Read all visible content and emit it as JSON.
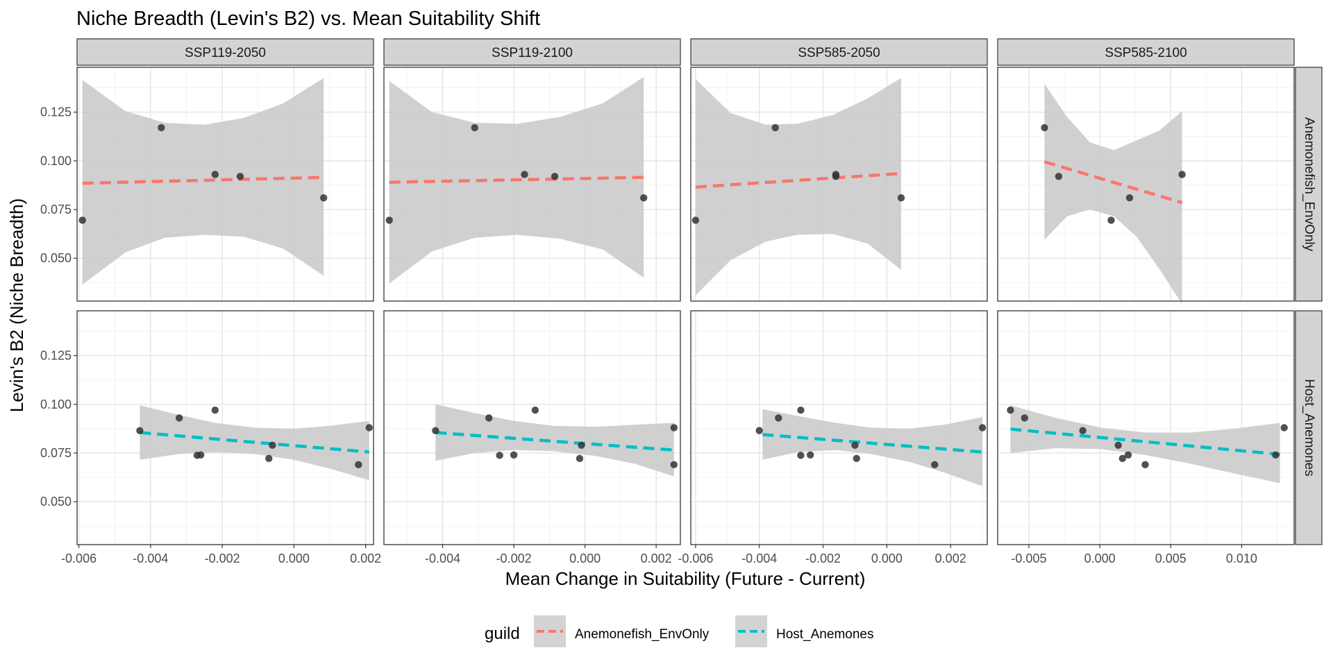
{
  "chart_data": {
    "type": "scatter",
    "title": "Niche Breadth (Levin's B2) vs. Mean Suitability Shift",
    "xlabel": "Mean Change in Suitability (Future - Current)",
    "ylabel": "Levin's B2 (Niche Breadth)",
    "legend": {
      "title": "guild",
      "position": "bottom",
      "entries": [
        {
          "name": "Anemonefish_EnvOnly",
          "color": "#F8766D"
        },
        {
          "name": "Host_Anemones",
          "color": "#00BFC4"
        }
      ]
    },
    "colors": {
      "ribbon": "#c8c8c8",
      "strip": "#d3d3d3",
      "point": "#333333",
      "grid_major": "#e6e6e6",
      "grid_minor": "#f2f2f2"
    },
    "y_range": [
      0.028,
      0.148
    ],
    "y_ticks": [
      0.05,
      0.075,
      0.1,
      0.125
    ],
    "y_tick_labels": [
      "0.050",
      "0.075",
      "0.100",
      "0.125"
    ],
    "columns": [
      {
        "label": "SSP119-2050",
        "x_range": [
          -0.00605,
          0.00222
        ],
        "x_ticks": [
          -0.006,
          -0.004,
          -0.002,
          0.0,
          0.002
        ],
        "x_tick_labels": [
          "-0.006",
          "-0.004",
          "-0.002",
          "0.000",
          "0.002"
        ]
      },
      {
        "label": "SSP119-2100",
        "x_range": [
          -0.00565,
          0.00268
        ],
        "x_ticks": [
          -0.004,
          -0.002,
          0.0,
          0.002
        ],
        "x_tick_labels": [
          "-0.004",
          "-0.002",
          "0.000",
          "0.002"
        ]
      },
      {
        "label": "SSP585-2050",
        "x_range": [
          -0.00615,
          0.00315
        ],
        "x_ticks": [
          -0.006,
          -0.004,
          -0.002,
          0.0,
          0.002
        ],
        "x_tick_labels": [
          "-0.006",
          "-0.004",
          "-0.002",
          "0.000",
          "0.002"
        ]
      },
      {
        "label": "SSP585-2100",
        "x_range": [
          -0.0072,
          0.0137
        ],
        "x_ticks": [
          -0.005,
          0.0,
          0.005,
          0.01
        ],
        "x_tick_labels": [
          "-0.005",
          "0.000",
          "0.005",
          "0.010"
        ]
      }
    ],
    "rows": [
      {
        "label": "Anemonefish_EnvOnly",
        "guild": "Anemonefish_EnvOnly"
      },
      {
        "label": "Host_Anemones",
        "guild": "Host_Anemones"
      }
    ],
    "panels": [
      {
        "row": 0,
        "col": 0,
        "points": [
          [
            -0.0059,
            0.0695
          ],
          [
            -0.0037,
            0.117
          ],
          [
            -0.0022,
            0.093
          ],
          [
            -0.0015,
            0.092
          ],
          [
            0.00083,
            0.081
          ]
        ],
        "fit": {
          "x": [
            -0.0059,
            0.00083
          ],
          "y": [
            0.0885,
            0.0915
          ]
        },
        "band": {
          "x": [
            -0.0059,
            -0.0047,
            -0.0036,
            -0.0025,
            -0.0014,
            -0.0003,
            0.00083
          ],
          "lower": [
            0.0365,
            0.053,
            0.0605,
            0.062,
            0.061,
            0.055,
            0.041
          ],
          "upper": [
            0.1415,
            0.1255,
            0.1195,
            0.1185,
            0.122,
            0.1295,
            0.1425
          ]
        }
      },
      {
        "row": 0,
        "col": 1,
        "points": [
          [
            -0.0055,
            0.0695
          ],
          [
            -0.0031,
            0.117
          ],
          [
            -0.0017,
            0.093
          ],
          [
            -0.00085,
            0.092
          ],
          [
            0.00165,
            0.081
          ]
        ],
        "fit": {
          "x": [
            -0.0055,
            0.00165
          ],
          "y": [
            0.089,
            0.0915
          ]
        },
        "band": {
          "x": [
            -0.0055,
            -0.0043,
            -0.0031,
            -0.0019,
            -0.0007,
            0.0005,
            0.00165
          ],
          "lower": [
            0.037,
            0.0535,
            0.0605,
            0.062,
            0.06,
            0.0545,
            0.04
          ],
          "upper": [
            0.141,
            0.125,
            0.1195,
            0.119,
            0.1225,
            0.1295,
            0.143
          ]
        }
      },
      {
        "row": 0,
        "col": 2,
        "points": [
          [
            -0.006,
            0.0695
          ],
          [
            -0.0035,
            0.117
          ],
          [
            -0.0016,
            0.093
          ],
          [
            -0.0016,
            0.092
          ],
          [
            0.00045,
            0.081
          ]
        ],
        "fit": {
          "x": [
            -0.006,
            0.00045
          ],
          "y": [
            0.0865,
            0.0935
          ]
        },
        "band": {
          "x": [
            -0.006,
            -0.0049,
            -0.0038,
            -0.0028,
            -0.0017,
            -0.0006,
            0.00045
          ],
          "lower": [
            0.031,
            0.049,
            0.0585,
            0.062,
            0.0625,
            0.0575,
            0.044
          ],
          "upper": [
            0.142,
            0.1245,
            0.1185,
            0.119,
            0.1235,
            0.132,
            0.1425
          ]
        }
      },
      {
        "row": 0,
        "col": 3,
        "points": [
          [
            -0.0039,
            0.117
          ],
          [
            -0.0029,
            0.092
          ],
          [
            0.0008,
            0.0695
          ],
          [
            0.0021,
            0.081
          ],
          [
            0.0058,
            0.093
          ]
        ],
        "fit": {
          "x": [
            -0.0039,
            0.0058
          ],
          "y": [
            0.0995,
            0.0785
          ]
        },
        "band": {
          "x": [
            -0.0039,
            -0.0023,
            -0.0007,
            0.001,
            0.0026,
            0.0042,
            0.0058
          ],
          "lower": [
            0.0595,
            0.0715,
            0.075,
            0.0715,
            0.061,
            0.0445,
            0.0265
          ],
          "upper": [
            0.1395,
            0.1225,
            0.1095,
            0.1055,
            0.1105,
            0.1155,
            0.1255
          ]
        }
      },
      {
        "row": 1,
        "col": 0,
        "points": [
          [
            -0.0043,
            0.0865
          ],
          [
            -0.0032,
            0.093
          ],
          [
            -0.0027,
            0.0738
          ],
          [
            -0.0026,
            0.074
          ],
          [
            -0.0022,
            0.097
          ],
          [
            -0.0006,
            0.079
          ],
          [
            -0.0007,
            0.0722
          ],
          [
            0.0018,
            0.069
          ],
          [
            0.0021,
            0.088
          ]
        ],
        "fit": {
          "x": [
            -0.0043,
            0.0021
          ],
          "y": [
            0.0855,
            0.0755
          ]
        },
        "band": {
          "x": [
            -0.0043,
            -0.0032,
            -0.0022,
            -0.0011,
            0.0,
            0.001,
            0.0021
          ],
          "lower": [
            0.0715,
            0.0745,
            0.0755,
            0.0745,
            0.0715,
            0.067,
            0.061
          ],
          "upper": [
            0.0995,
            0.0945,
            0.0905,
            0.088,
            0.0875,
            0.089,
            0.0915
          ]
        }
      },
      {
        "row": 1,
        "col": 1,
        "points": [
          [
            -0.0042,
            0.0865
          ],
          [
            -0.0027,
            0.093
          ],
          [
            -0.0024,
            0.0738
          ],
          [
            -0.002,
            0.074
          ],
          [
            -0.0014,
            0.097
          ],
          [
            -0.0001,
            0.079
          ],
          [
            -0.00015,
            0.0722
          ],
          [
            0.0025,
            0.088
          ],
          [
            0.0025,
            0.069
          ]
        ],
        "fit": {
          "x": [
            -0.0042,
            0.0025
          ],
          "y": [
            0.0855,
            0.0765
          ]
        },
        "band": {
          "x": [
            -0.0042,
            -0.0031,
            -0.002,
            -0.0009,
            0.0003,
            0.0014,
            0.0025
          ],
          "lower": [
            0.071,
            0.075,
            0.0765,
            0.076,
            0.0735,
            0.0695,
            0.063
          ],
          "upper": [
            0.1,
            0.0955,
            0.0915,
            0.089,
            0.0885,
            0.0895,
            0.0905
          ]
        }
      },
      {
        "row": 1,
        "col": 2,
        "points": [
          [
            -0.004,
            0.0865
          ],
          [
            -0.0034,
            0.093
          ],
          [
            -0.0027,
            0.0738
          ],
          [
            -0.0027,
            0.097
          ],
          [
            -0.0024,
            0.074
          ],
          [
            -0.001,
            0.079
          ],
          [
            -0.00095,
            0.0722
          ],
          [
            0.0015,
            0.069
          ],
          [
            0.003,
            0.088
          ]
        ],
        "fit": {
          "x": [
            -0.0039,
            0.003
          ],
          "y": [
            0.0845,
            0.0755
          ]
        },
        "band": {
          "x": [
            -0.0039,
            -0.0028,
            -0.0016,
            -0.0005,
            0.0007,
            0.0018,
            0.003
          ],
          "lower": [
            0.0715,
            0.0755,
            0.0765,
            0.0745,
            0.0705,
            0.065,
            0.058
          ],
          "upper": [
            0.0975,
            0.094,
            0.0905,
            0.088,
            0.0875,
            0.0895,
            0.0935
          ]
        }
      },
      {
        "row": 1,
        "col": 3,
        "points": [
          [
            -0.0063,
            0.097
          ],
          [
            -0.0053,
            0.093
          ],
          [
            -0.0012,
            0.0865
          ],
          [
            0.0013,
            0.079
          ],
          [
            0.0016,
            0.0722
          ],
          [
            0.002,
            0.074
          ],
          [
            0.0032,
            0.069
          ],
          [
            0.0124,
            0.074
          ],
          [
            0.013,
            0.088
          ]
        ],
        "fit": {
          "x": [
            -0.0063,
            0.0127
          ],
          "y": [
            0.0873,
            0.0743
          ]
        },
        "band": {
          "x": [
            -0.0063,
            -0.0031,
            0.0001,
            0.0032,
            0.0064,
            0.0095,
            0.0127
          ],
          "lower": [
            0.075,
            0.0775,
            0.077,
            0.074,
            0.0695,
            0.0645,
            0.0595
          ],
          "upper": [
            0.0995,
            0.093,
            0.088,
            0.0855,
            0.0855,
            0.0875,
            0.0905
          ]
        }
      }
    ]
  }
}
